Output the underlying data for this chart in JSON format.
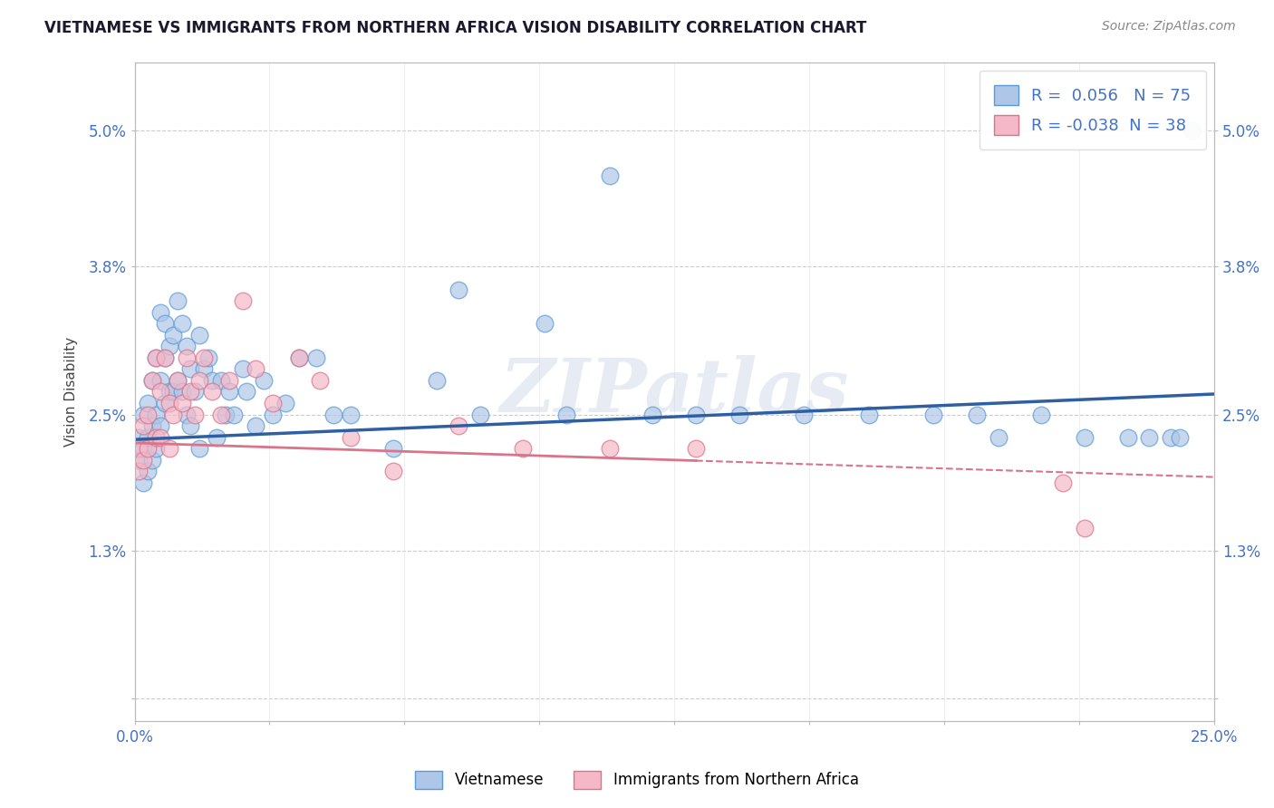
{
  "title": "VIETNAMESE VS IMMIGRANTS FROM NORTHERN AFRICA VISION DISABILITY CORRELATION CHART",
  "source": "Source: ZipAtlas.com",
  "ylabel": "Vision Disability",
  "xlim": [
    0.0,
    0.25
  ],
  "ylim": [
    -0.002,
    0.056
  ],
  "yticks": [
    0.0,
    0.013,
    0.025,
    0.038,
    0.05
  ],
  "ytick_labels": [
    "",
    "1.3%",
    "2.5%",
    "3.8%",
    "5.0%"
  ],
  "xticks": [
    0.0,
    0.03125,
    0.0625,
    0.09375,
    0.125,
    0.15625,
    0.1875,
    0.21875,
    0.25
  ],
  "xtick_labels": [
    "0.0%",
    "",
    "",
    "",
    "",
    "",
    "",
    "",
    "25.0%"
  ],
  "series1_name": "Vietnamese",
  "series1_color": "#aec6e8",
  "series1_border": "#5b9bd5",
  "series1_R": 0.056,
  "series1_N": 75,
  "series1_line_color": "#2e5fa3",
  "series2_name": "Immigrants from Northern Africa",
  "series2_color": "#f4b8c8",
  "series2_border": "#d9748a",
  "series2_R": -0.038,
  "series2_N": 38,
  "series2_line_color": "#d9748a",
  "watermark": "ZIPatlas",
  "background_color": "#ffffff",
  "grid_color": "#cccccc",
  "title_color": "#1a1a2e",
  "axis_color": "#4472c4",
  "legend_text_color": "#4472c4",
  "trend1_x0": 0.0,
  "trend1_y0": 0.0228,
  "trend1_x1": 0.25,
  "trend1_y1": 0.0268,
  "trend2_x0": 0.0,
  "trend2_y0": 0.0225,
  "trend2_x1": 0.25,
  "trend2_y1": 0.0195,
  "s1_x": [
    0.001,
    0.001,
    0.002,
    0.002,
    0.002,
    0.003,
    0.003,
    0.003,
    0.004,
    0.004,
    0.004,
    0.005,
    0.005,
    0.005,
    0.006,
    0.006,
    0.006,
    0.007,
    0.007,
    0.007,
    0.008,
    0.008,
    0.009,
    0.009,
    0.01,
    0.01,
    0.011,
    0.011,
    0.012,
    0.012,
    0.013,
    0.013,
    0.014,
    0.015,
    0.015,
    0.016,
    0.017,
    0.018,
    0.019,
    0.02,
    0.021,
    0.022,
    0.023,
    0.025,
    0.026,
    0.028,
    0.03,
    0.032,
    0.035,
    0.038,
    0.042,
    0.046,
    0.05,
    0.06,
    0.07,
    0.075,
    0.08,
    0.095,
    0.1,
    0.11,
    0.12,
    0.13,
    0.14,
    0.155,
    0.17,
    0.185,
    0.195,
    0.2,
    0.21,
    0.22,
    0.23,
    0.235,
    0.24,
    0.242,
    0.245
  ],
  "s1_y": [
    0.023,
    0.021,
    0.025,
    0.022,
    0.019,
    0.026,
    0.023,
    0.02,
    0.028,
    0.024,
    0.021,
    0.03,
    0.025,
    0.022,
    0.034,
    0.028,
    0.024,
    0.033,
    0.03,
    0.026,
    0.031,
    0.027,
    0.032,
    0.027,
    0.035,
    0.028,
    0.033,
    0.027,
    0.031,
    0.025,
    0.029,
    0.024,
    0.027,
    0.032,
    0.022,
    0.029,
    0.03,
    0.028,
    0.023,
    0.028,
    0.025,
    0.027,
    0.025,
    0.029,
    0.027,
    0.024,
    0.028,
    0.025,
    0.026,
    0.03,
    0.03,
    0.025,
    0.025,
    0.022,
    0.028,
    0.036,
    0.025,
    0.033,
    0.025,
    0.046,
    0.025,
    0.025,
    0.025,
    0.025,
    0.025,
    0.025,
    0.025,
    0.023,
    0.025,
    0.023,
    0.023,
    0.023,
    0.023,
    0.023,
    0.05
  ],
  "s2_x": [
    0.001,
    0.001,
    0.002,
    0.002,
    0.003,
    0.003,
    0.004,
    0.005,
    0.005,
    0.006,
    0.006,
    0.007,
    0.008,
    0.008,
    0.009,
    0.01,
    0.011,
    0.012,
    0.013,
    0.014,
    0.015,
    0.016,
    0.018,
    0.02,
    0.022,
    0.025,
    0.028,
    0.032,
    0.038,
    0.043,
    0.05,
    0.06,
    0.075,
    0.09,
    0.11,
    0.13,
    0.215,
    0.22
  ],
  "s2_y": [
    0.022,
    0.02,
    0.024,
    0.021,
    0.025,
    0.022,
    0.028,
    0.03,
    0.023,
    0.027,
    0.023,
    0.03,
    0.026,
    0.022,
    0.025,
    0.028,
    0.026,
    0.03,
    0.027,
    0.025,
    0.028,
    0.03,
    0.027,
    0.025,
    0.028,
    0.035,
    0.029,
    0.026,
    0.03,
    0.028,
    0.023,
    0.02,
    0.024,
    0.022,
    0.022,
    0.022,
    0.019,
    0.015
  ]
}
